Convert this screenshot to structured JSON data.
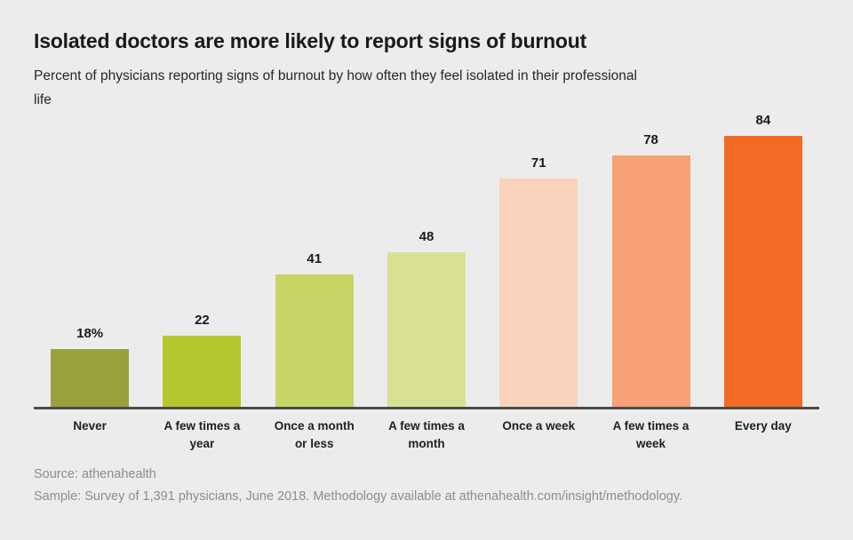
{
  "page": {
    "background_color": "#ececec"
  },
  "header": {
    "title": "Isolated doctors are more likely to report signs of burnout",
    "subtitle": "Percent of physicians reporting signs of burnout by how often they feel isolated in their professional life"
  },
  "chart_data": {
    "type": "bar",
    "title": "Isolated doctors are more likely to report signs of burnout",
    "subtitle": "Percent of physicians reporting signs of burnout by how often they feel isolated in their professional life",
    "categories": [
      "Never",
      "A few times a year",
      "Once a month or less",
      "A few times a month",
      "Once a week",
      "A few times a week",
      "Every day"
    ],
    "values": [
      18,
      22,
      41,
      48,
      71,
      78,
      84
    ],
    "value_labels": [
      "18%",
      "22",
      "41",
      "48",
      "71",
      "78",
      "84"
    ],
    "bar_colors": [
      "#99a13c",
      "#b5c72e",
      "#c7d565",
      "#d8e191",
      "#fad2bc",
      "#f7a174",
      "#f26a23"
    ],
    "unit": "percent",
    "xlabel": "",
    "ylabel": "",
    "ylim": [
      0,
      84
    ],
    "grid": false,
    "legend": "none",
    "axis_color": "#4b4b4b"
  },
  "footer": {
    "source": "Source: athenahealth",
    "sample": "Sample: Survey of 1,391 physicians, June 2018. Methodology available at athenahealth.com/insight/methodology."
  }
}
